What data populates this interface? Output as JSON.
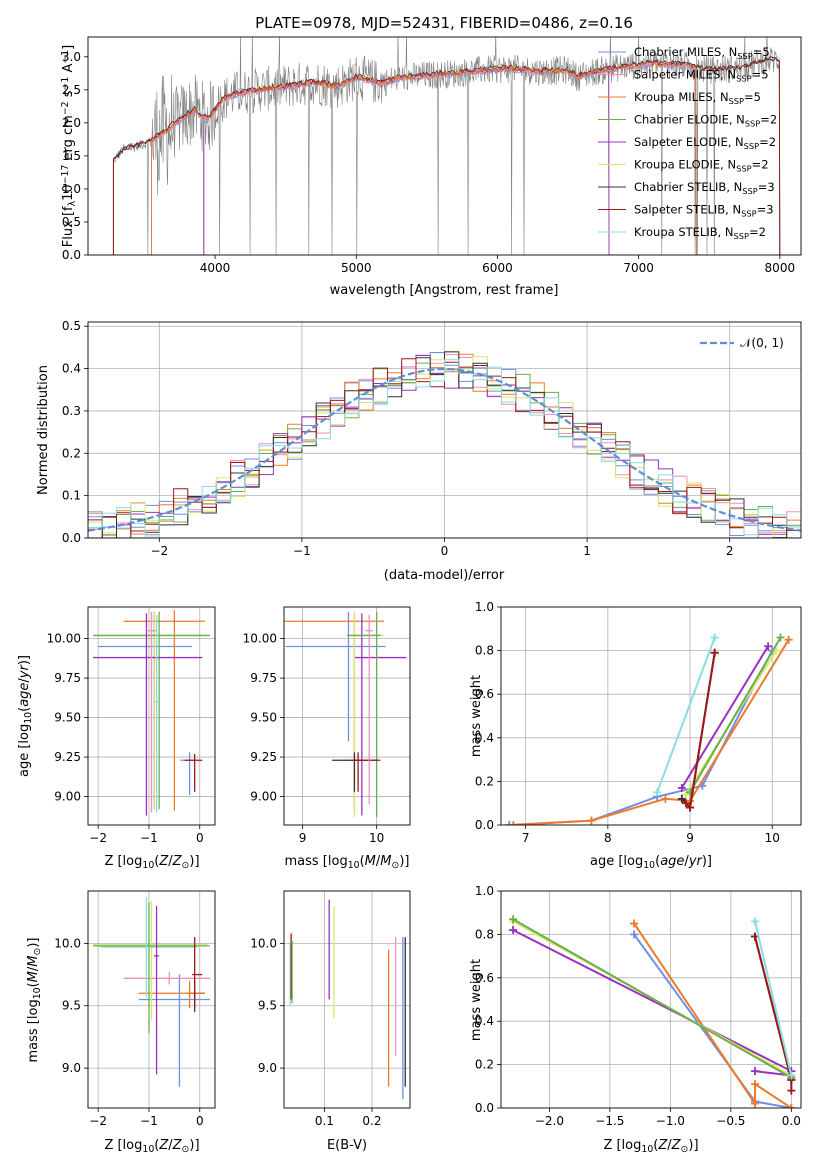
{
  "colors": {
    "spectrum": "#808080",
    "series": [
      "#6f8fe6",
      "#f08fbf",
      "#ef7a2a",
      "#6ab04c",
      "#9b30c0",
      "#d8e86a",
      "#333333",
      "#a01818",
      "#88dde0"
    ],
    "gaussian": "#5b8fd8",
    "grid": "#b0b0b0"
  },
  "chart_data": [
    {
      "id": "spectrum",
      "type": "line",
      "title": "PLATE=0978, MJD=52431, FIBERID=0486, z=0.16",
      "xlabel": "wavelength [Angstrom, rest frame]",
      "ylabel": "Flux [f_λ10^-17 erg cm^-2 s^-1 A^-1]",
      "xlim": [
        3100,
        8150
      ],
      "ylim": [
        0,
        3.3
      ],
      "xticks": [
        4000,
        5000,
        6000,
        7000,
        8000
      ],
      "yticks": [
        0.0,
        0.5,
        1.0,
        1.5,
        2.0,
        2.5,
        3.0
      ],
      "grid": false,
      "legend_position": "upper-right",
      "legend": [
        "Chabrier MILES, N_SSP=5",
        "Salpeter MILES, N_SSP=5",
        "Kroupa MILES, N_SSP=5",
        "Chabrier ELODIE, N_SSP=2",
        "Salpeter ELODIE, N_SSP=2",
        "Kroupa ELODIE, N_SSP=2",
        "Chabrier STELIB, N_SSP=3",
        "Salpeter STELIB, N_SSP=3",
        "Kroupa STELIB, N_SSP=2"
      ],
      "model_continuum": {
        "x": [
          3280,
          3350,
          3450,
          3550,
          3650,
          3750,
          3850,
          3950,
          4050,
          4150,
          4300,
          4500,
          4700,
          4862,
          5000,
          5175,
          5300,
          5500,
          5700,
          5900,
          6100,
          6300,
          6500,
          6563,
          6700,
          6900,
          7100,
          7300,
          7500,
          7700,
          7900
        ],
        "y": [
          1.42,
          1.6,
          1.65,
          1.72,
          1.88,
          2.05,
          2.2,
          2.05,
          2.35,
          2.45,
          2.5,
          2.55,
          2.62,
          2.55,
          2.7,
          2.6,
          2.68,
          2.72,
          2.75,
          2.8,
          2.82,
          2.78,
          2.8,
          2.7,
          2.78,
          2.85,
          2.9,
          2.88,
          2.8,
          2.82,
          2.95
        ]
      },
      "model_range_by_library": {
        "MILES": [
          3550,
          7410
        ],
        "ELODIE": [
          3920,
          6790
        ],
        "STELIB": [
          3280,
          8000
        ]
      }
    },
    {
      "id": "residuals",
      "type": "line",
      "xlabel": "(data-model)/error",
      "ylabel": "Normed distribution",
      "xlim": [
        -2.5,
        2.5
      ],
      "ylim": [
        0,
        0.51
      ],
      "xticks": [
        -2,
        -1,
        0,
        1,
        2
      ],
      "yticks": [
        0.0,
        0.1,
        0.2,
        0.3,
        0.4,
        0.5
      ],
      "grid": true,
      "legend": [
        "𝒩(0, 1)"
      ],
      "legend_position": "upper-right",
      "histogram_bin_width": 0.1
    },
    {
      "id": "age_vs_Z",
      "type": "scatter",
      "xlabel": "Z [log10(Z/Z⊙)]",
      "ylabel": "age  [log10(age/yr)]",
      "xlim": [
        -2.2,
        0.3
      ],
      "ylim": [
        8.82,
        10.2
      ],
      "xticks": [
        -2,
        -1,
        0
      ],
      "yticks": [
        9.0,
        9.25,
        9.5,
        9.75,
        10.0
      ],
      "grid": true,
      "points": [
        {
          "x": -0.2,
          "y": 9.23,
          "xerr": [
            0.18,
            0.12
          ],
          "yerr": [
            0.22,
            0.05
          ],
          "series": 0
        },
        {
          "x": -0.1,
          "y": 9.23,
          "xerr": [
            0.2,
            0.15
          ],
          "yerr": [
            0.2,
            0.04
          ],
          "series": 7
        },
        {
          "x": -0.9,
          "y": 9.95,
          "xerr": [
            1.1,
            0.75
          ],
          "yerr": [
            1.03,
            0.22
          ],
          "series": 0
        },
        {
          "x": -0.5,
          "y": 10.11,
          "xerr": [
            1.0,
            0.6
          ],
          "yerr": [
            1.2,
            0.07
          ],
          "series": 2
        },
        {
          "x": -0.9,
          "y": 10.02,
          "xerr": [
            1.2,
            1.1
          ],
          "yerr": [
            1.1,
            0.15
          ],
          "series": 5
        },
        {
          "x": -0.8,
          "y": 10.02,
          "xerr": [
            1.3,
            1.0
          ],
          "yerr": [
            1.1,
            0.15
          ],
          "series": 3
        },
        {
          "x": -1.05,
          "y": 9.88,
          "xerr": [
            1.05,
            1.1
          ],
          "yerr": [
            1.0,
            0.28
          ],
          "series": 4
        },
        {
          "x": -0.95,
          "y": 10.05,
          "xerr": [
            0.1,
            0.1
          ],
          "yerr": [
            1.15,
            0.12
          ],
          "series": 1
        },
        {
          "x": -0.85,
          "y": 9.6,
          "xerr": [
            0.05,
            0.05
          ],
          "yerr": [
            0.7,
            0.55
          ],
          "series": 8
        }
      ]
    },
    {
      "id": "age_vs_mass",
      "type": "scatter",
      "xlabel": "mass [log10(M/M⊙)]",
      "xlim": [
        8.75,
        10.45
      ],
      "ylim": [
        8.82,
        10.2
      ],
      "xticks": [
        9,
        10
      ],
      "yticks": [
        9.0,
        9.25,
        9.5,
        9.75,
        10.0
      ],
      "grid": true,
      "points": [
        {
          "x": 9.62,
          "y": 9.95,
          "xerr": [
            0.85,
            0.5
          ],
          "yerr": [
            0.6,
            0.22
          ],
          "series": 0
        },
        {
          "x": 9.7,
          "y": 10.11,
          "xerr": [
            0.95,
            0.4
          ],
          "yerr": [
            1.2,
            0.05
          ],
          "series": 2
        },
        {
          "x": 9.8,
          "y": 9.88,
          "xerr": [
            0.1,
            0.6
          ],
          "yerr": [
            1.0,
            0.28
          ],
          "series": 4
        },
        {
          "x": 9.7,
          "y": 10.02,
          "xerr": [
            0.1,
            0.4
          ],
          "yerr": [
            1.15,
            0.15
          ],
          "series": 5
        },
        {
          "x": 10.0,
          "y": 10.02,
          "xerr": [
            0.4,
            0.05
          ],
          "yerr": [
            1.15,
            0.15
          ],
          "series": 3
        },
        {
          "x": 9.7,
          "y": 9.23,
          "xerr": [
            0.3,
            0.3
          ],
          "yerr": [
            0.2,
            0.05
          ],
          "series": 6
        },
        {
          "x": 9.75,
          "y": 9.23,
          "xerr": [
            0.1,
            0.3
          ],
          "yerr": [
            0.2,
            0.05
          ],
          "series": 7
        },
        {
          "x": 9.9,
          "y": 10.05,
          "xerr": [
            0.05,
            0.05
          ],
          "yerr": [
            1.1,
            0.1
          ],
          "series": 1
        }
      ]
    },
    {
      "id": "mass_weight_vs_age",
      "type": "line",
      "xlabel": "age  [log10(age/yr)]",
      "ylabel": "mass weight",
      "xlim": [
        6.7,
        10.35
      ],
      "ylim": [
        0,
        1.0
      ],
      "xticks": [
        7,
        8,
        9,
        10
      ],
      "yticks": [
        0.0,
        0.2,
        0.4,
        0.6,
        0.8,
        1.0
      ],
      "grid": true,
      "series": [
        {
          "series": 0,
          "x": [
            6.8,
            7.8,
            8.6,
            9.15,
            10.0
          ],
          "y": [
            0.0,
            0.02,
            0.13,
            0.18,
            0.8
          ]
        },
        {
          "series": 2,
          "x": [
            6.85,
            7.8,
            8.7,
            9.0,
            10.2
          ],
          "y": [
            0.0,
            0.02,
            0.12,
            0.11,
            0.85
          ]
        },
        {
          "series": 4,
          "x": [
            8.9,
            9.95
          ],
          "y": [
            0.17,
            0.82
          ]
        },
        {
          "series": 5,
          "x": [
            8.95,
            10.05
          ],
          "y": [
            0.14,
            0.8
          ]
        },
        {
          "series": 3,
          "x": [
            9.0,
            10.1
          ],
          "y": [
            0.15,
            0.86
          ]
        },
        {
          "series": 6,
          "x": [
            8.9,
            9.0,
            9.3
          ],
          "y": [
            0.12,
            0.08,
            0.79
          ]
        },
        {
          "series": 7,
          "x": [
            8.95,
            9.0,
            9.3
          ],
          "y": [
            0.1,
            0.08,
            0.79
          ]
        },
        {
          "series": 8,
          "x": [
            8.6,
            9.3
          ],
          "y": [
            0.15,
            0.86
          ]
        }
      ]
    },
    {
      "id": "mass_vs_Z",
      "type": "scatter",
      "xlabel": "Z [log10(Z/Z⊙)]",
      "ylabel": "mass [log10(M/M⊙)]",
      "xlim": [
        -2.2,
        0.3
      ],
      "ylim": [
        8.68,
        10.42
      ],
      "xticks": [
        -2,
        -1,
        0
      ],
      "yticks": [
        9.0,
        9.5,
        10.0
      ],
      "grid": true,
      "points": [
        {
          "x": -0.1,
          "y": 9.6,
          "xerr": [
            0.15,
            0.2
          ],
          "yerr": [
            0.15,
            0.1
          ],
          "series": 6
        },
        {
          "x": -0.2,
          "y": 9.6,
          "xerr": [
            1.0,
            0.3
          ],
          "yerr": [
            0.12,
            0.1
          ],
          "series": 2
        },
        {
          "x": -0.4,
          "y": 9.55,
          "xerr": [
            0.8,
            0.6
          ],
          "yerr": [
            0.7,
            0.2
          ],
          "series": 0
        },
        {
          "x": -0.6,
          "y": 9.72,
          "xerr": [
            0.9,
            0.8
          ],
          "yerr": [
            0.05,
            0.05
          ],
          "series": 1
        },
        {
          "x": -0.95,
          "y": 9.99,
          "xerr": [
            1.15,
            1.1
          ],
          "yerr": [
            0.6,
            0.35
          ],
          "series": 5
        },
        {
          "x": -1.0,
          "y": 9.98,
          "xerr": [
            1.1,
            1.2
          ],
          "yerr": [
            0.7,
            0.35
          ],
          "series": 3
        },
        {
          "x": -1.05,
          "y": 9.97,
          "xerr": [
            0.9,
            1.0
          ],
          "yerr": [
            0.4,
            0.4
          ],
          "series": 8
        },
        {
          "x": -0.1,
          "y": 9.75,
          "xerr": [
            0.05,
            0.15
          ],
          "yerr": [
            0.25,
            0.3
          ],
          "series": 7
        },
        {
          "x": -0.85,
          "y": 9.9,
          "xerr": [
            0.05,
            0.05
          ],
          "yerr": [
            0.95,
            0.4
          ],
          "series": 4
        }
      ]
    },
    {
      "id": "mass_vs_EBV",
      "type": "scatter",
      "xlabel": "E(B-V)",
      "xlim": [
        0.015,
        0.28
      ],
      "ylim": [
        8.68,
        10.42
      ],
      "xticks": [
        0.1,
        0.2
      ],
      "yticks": [
        9.0,
        9.5,
        10.0
      ],
      "grid": true,
      "points": [
        {
          "x": 0.028,
          "y": 9.75,
          "yerr": [
            0.25,
            0.25
          ],
          "series": 8
        },
        {
          "x": 0.03,
          "y": 9.8,
          "yerr": [
            0.25,
            0.28
          ],
          "series": 7
        },
        {
          "x": 0.032,
          "y": 9.72,
          "yerr": [
            0.2,
            0.3
          ],
          "series": 3
        },
        {
          "x": 0.11,
          "y": 9.95,
          "yerr": [
            0.4,
            0.4
          ],
          "series": 4
        },
        {
          "x": 0.12,
          "y": 9.85,
          "yerr": [
            0.45,
            0.45
          ],
          "series": 5
        },
        {
          "x": 0.235,
          "y": 9.4,
          "yerr": [
            0.55,
            0.55
          ],
          "series": 2
        },
        {
          "x": 0.25,
          "y": 9.55,
          "yerr": [
            0.45,
            0.5
          ],
          "series": 1
        },
        {
          "x": 0.265,
          "y": 9.6,
          "yerr": [
            0.85,
            0.45
          ],
          "series": 0
        },
        {
          "x": 0.27,
          "y": 9.45,
          "yerr": [
            0.6,
            0.6
          ],
          "series": 6
        }
      ]
    },
    {
      "id": "mass_weight_vs_Z",
      "type": "line",
      "xlabel": "Z [log10(Z/Z⊙)]",
      "ylabel": "mass weight",
      "xlim": [
        -2.4,
        0.08
      ],
      "ylim": [
        0,
        1.0
      ],
      "xticks": [
        -2.0,
        -1.5,
        -1.0,
        -0.5,
        0.0
      ],
      "yticks": [
        0.0,
        0.2,
        0.4,
        0.6,
        0.8,
        1.0
      ],
      "grid": true,
      "series": [
        {
          "series": 0,
          "x": [
            -1.3,
            -0.3,
            0.0
          ],
          "y": [
            0.8,
            0.03,
            0.0
          ]
        },
        {
          "series": 2,
          "x": [
            -1.3,
            -0.3,
            -0.3,
            0.0
          ],
          "y": [
            0.85,
            0.02,
            0.11,
            0.0
          ]
        },
        {
          "series": 4,
          "x": [
            -2.3,
            0.0
          ],
          "y": [
            0.82,
            0.17
          ]
        },
        {
          "series": 4,
          "x": [
            -0.3,
            0.0
          ],
          "y": [
            0.17,
            0.15
          ]
        },
        {
          "series": 5,
          "x": [
            -2.3,
            0.0
          ],
          "y": [
            0.86,
            0.15
          ]
        },
        {
          "series": 3,
          "x": [
            -2.3,
            0.0
          ],
          "y": [
            0.87,
            0.14
          ]
        },
        {
          "series": 6,
          "x": [
            -0.3,
            0.0
          ],
          "y": [
            0.79,
            0.13
          ]
        },
        {
          "series": 7,
          "x": [
            -0.3,
            0.0,
            0.0
          ],
          "y": [
            0.79,
            0.13,
            0.08
          ]
        },
        {
          "series": 8,
          "x": [
            -0.3,
            0.0
          ],
          "y": [
            0.86,
            0.15
          ]
        }
      ]
    }
  ]
}
